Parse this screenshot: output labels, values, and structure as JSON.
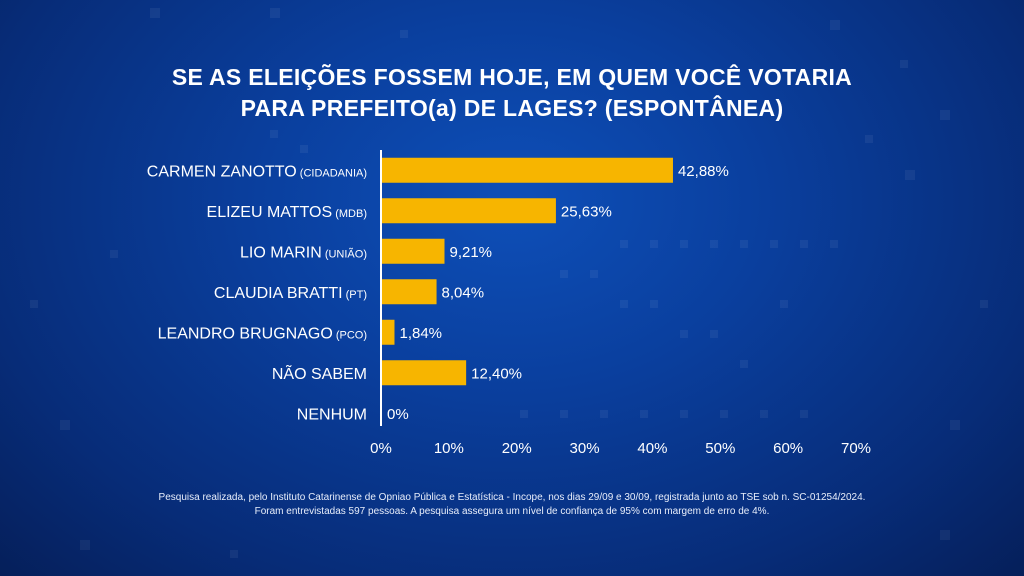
{
  "title_lines": [
    "SE AS ELEIÇÕES FOSSEM HOJE, EM QUEM VOCÊ VOTARIA",
    "PARA PREFEITO(a) DE LAGES? (ESPONTÂNEA)"
  ],
  "chart_data": {
    "type": "bar",
    "orientation": "horizontal",
    "categories": [
      {
        "name": "CARMEN ZANOTTO",
        "party": "(CIDADANIA)"
      },
      {
        "name": "ELIZEU MATTOS",
        "party": "(MDB)"
      },
      {
        "name": "LIO MARIN",
        "party": "(UNIÃO)"
      },
      {
        "name": "CLAUDIA BRATTI",
        "party": "(PT)"
      },
      {
        "name": "LEANDRO BRUGNAGO",
        "party": "(PCO)"
      },
      {
        "name": "NÃO SABEM",
        "party": ""
      },
      {
        "name": "NENHUM",
        "party": ""
      }
    ],
    "values": [
      42.88,
      25.63,
      9.21,
      8.04,
      1.84,
      12.4,
      0
    ],
    "value_labels": [
      "42,88%",
      "25,63%",
      "9,21%",
      "8,04%",
      "1,84%",
      "12,40%",
      "0%"
    ],
    "x_ticks": [
      0,
      10,
      20,
      30,
      40,
      50,
      60,
      70
    ],
    "x_tick_labels": [
      "0%",
      "10%",
      "20%",
      "30%",
      "40%",
      "50%",
      "60%",
      "70%"
    ],
    "xlim": [
      0,
      70
    ],
    "grid": false,
    "bar_color": "#f7b500",
    "axis_color": "#ffffff"
  },
  "footnote_lines": [
    "Pesquisa realizada, pelo Instituto Catarinense de Opniao Pública e Estatística - Incope, nos dias 29/09 e 30/09, registrada junto ao TSE sob n. SC-01254/2024.",
    "Foram entrevistadas 597 pessoas. A pesquisa assegura um nível de confiança de 95% com margem de erro de 4%."
  ]
}
